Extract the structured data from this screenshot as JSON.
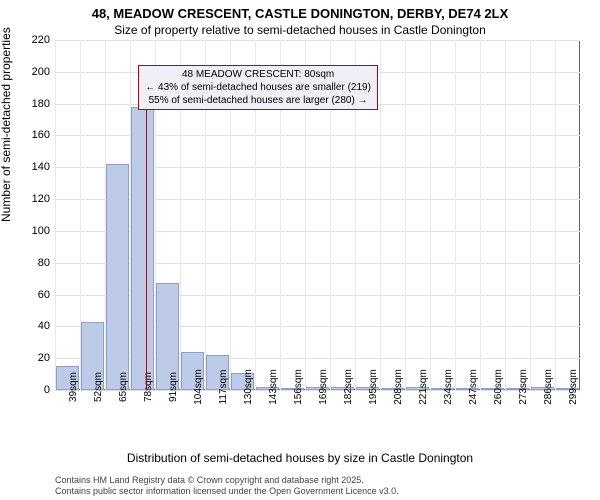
{
  "title": {
    "line1": "48, MEADOW CRESCENT, CASTLE DONINGTON, DERBY, DE74 2LX",
    "line2": "Size of property relative to semi-detached houses in Castle Donington"
  },
  "y_axis": {
    "label": "Number of semi-detached properties",
    "ticks": [
      0,
      20,
      40,
      60,
      80,
      100,
      120,
      140,
      160,
      180,
      200,
      220
    ],
    "max": 220
  },
  "x_axis": {
    "label": "Distribution of semi-detached houses by size in Castle Donington",
    "ticks": [
      "39sqm",
      "52sqm",
      "65sqm",
      "78sqm",
      "91sqm",
      "104sqm",
      "117sqm",
      "130sqm",
      "143sqm",
      "156sqm",
      "169sqm",
      "182sqm",
      "195sqm",
      "208sqm",
      "221sqm",
      "234sqm",
      "247sqm",
      "260sqm",
      "273sqm",
      "286sqm",
      "299sqm"
    ]
  },
  "bars": {
    "color": "#bdcbe9",
    "border": "#8ca0c8",
    "values": [
      15,
      43,
      142,
      178,
      67,
      24,
      22,
      11,
      2,
      0,
      2,
      2,
      2,
      0,
      2,
      0,
      0,
      0,
      0,
      2,
      0
    ]
  },
  "highlight": {
    "position_index": 3.15,
    "color": "#c00000"
  },
  "annotation": {
    "line1": "48 MEADOW CRESCENT: 80sqm",
    "line2": "← 43% of semi-detached houses are smaller (219)",
    "line3": "55% of semi-detached houses are larger (280) →",
    "border_color": "#c00000",
    "bg_color": "#efeff5"
  },
  "footer": {
    "line1": "Contains HM Land Registry data © Crown copyright and database right 2025.",
    "line2": "Contains public sector information licensed under the Open Government Licence v3.0."
  },
  "colors": {
    "background": "#ffffff",
    "grid": "#e0e0e0",
    "axis": "#666666"
  }
}
